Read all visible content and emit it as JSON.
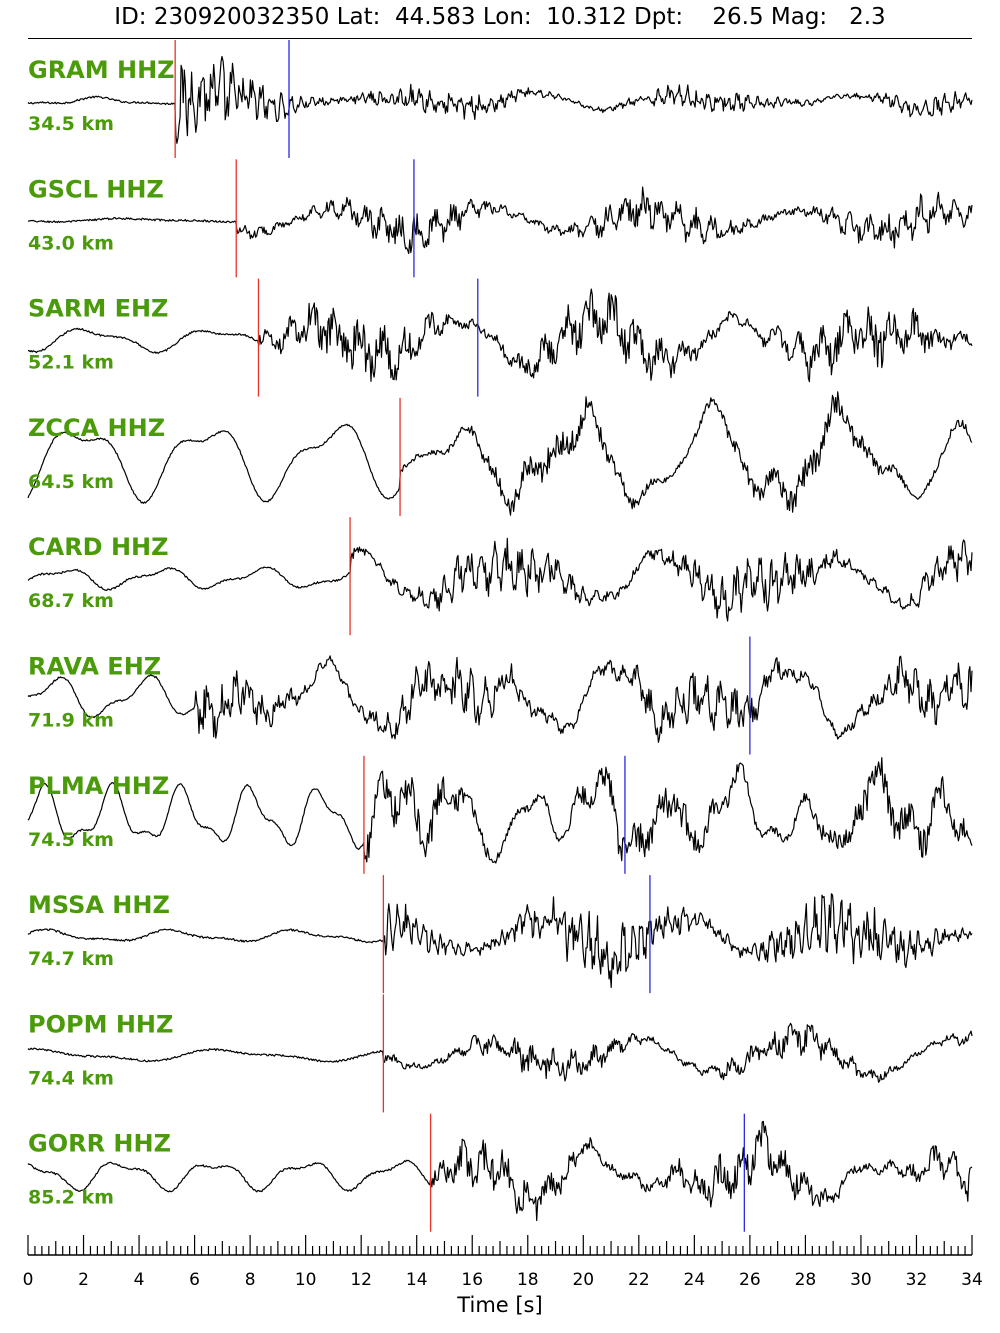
{
  "header": {
    "text": "ID: 230920032350 Lat:  44.583 Lon:  10.312 Dpt:    26.5 Mag:   2.3"
  },
  "chart_data": {
    "type": "line",
    "event": {
      "id": "230920032350",
      "lat": 44.583,
      "lon": 10.312,
      "depth": 26.5,
      "mag": 2.3
    },
    "xlabel": "Time [s]",
    "xlim": [
      0,
      34
    ],
    "x_ticks": [
      0,
      2,
      4,
      6,
      8,
      10,
      12,
      14,
      16,
      18,
      20,
      22,
      24,
      26,
      28,
      30,
      32,
      34
    ],
    "pick_colors": {
      "p": "#e8322a",
      "s": "#2a2ae0"
    },
    "trace_color": "#000000",
    "label_color": "#4a9a0a",
    "stations": [
      {
        "name": "GRAM HHZ",
        "distance": "34.5 km",
        "p_pick": 5.3,
        "s_pick": 9.4
      },
      {
        "name": "GSCL HHZ",
        "distance": "43.0 km",
        "p_pick": 7.5,
        "s_pick": 13.9
      },
      {
        "name": "SARM EHZ",
        "distance": "52.1 km",
        "p_pick": 8.3,
        "s_pick": 16.2
      },
      {
        "name": "ZCCA HHZ",
        "distance": "64.5 km",
        "p_pick": 13.4,
        "s_pick": null
      },
      {
        "name": "CARD HHZ",
        "distance": "68.7 km",
        "p_pick": 11.6,
        "s_pick": null
      },
      {
        "name": "RAVA EHZ",
        "distance": "71.9 km",
        "p_pick": null,
        "s_pick": 26.0
      },
      {
        "name": "PLMA HHZ",
        "distance": "74.5 km",
        "p_pick": 12.1,
        "s_pick": 21.5
      },
      {
        "name": "MSSA HHZ",
        "distance": "74.7 km",
        "p_pick": 12.8,
        "s_pick": 22.4
      },
      {
        "name": "POPM HHZ",
        "distance": "74.4 km",
        "p_pick": 12.8,
        "s_pick": null
      },
      {
        "name": "GORR HHZ",
        "distance": "85.2 km",
        "p_pick": 14.5,
        "s_pick": 25.8
      }
    ]
  }
}
